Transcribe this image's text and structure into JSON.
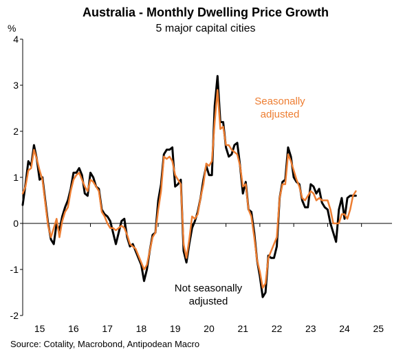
{
  "chart_data": {
    "type": "line",
    "title": "Australia - Monthly Dwelling Price Growth",
    "subtitle": "5 major capital cities",
    "ylabel": "%",
    "xlabel": "",
    "ylim": [
      -2,
      4
    ],
    "xlim": [
      2015.0,
      2025.9
    ],
    "yticks": [
      -2,
      -1,
      0,
      1,
      2,
      3,
      4
    ],
    "yticklabels": [
      "-2",
      "-1",
      "0",
      "1",
      "2",
      "3",
      "4"
    ],
    "xticks": [
      2015,
      2016,
      2017,
      2018,
      2019,
      2020,
      2021,
      2022,
      2023,
      2024,
      2025
    ],
    "xticklabels": [
      "15",
      "16",
      "17",
      "18",
      "19",
      "20",
      "21",
      "22",
      "23",
      "24",
      "25"
    ],
    "source": "Source: Cotality, Macrobond, Antipodean Macro",
    "grid": false,
    "legend": "none",
    "annotations": {
      "seasonally_adjusted": [
        "Seasonally",
        "adjusted"
      ],
      "not_seasonally_adjusted": [
        "Not seasonally",
        "adjusted"
      ]
    },
    "series": [
      {
        "name": "Not seasonally adjusted",
        "color": "#000000",
        "start": 2015.0,
        "step": 0.0833333,
        "values": [
          0.4,
          0.85,
          1.35,
          1.25,
          1.7,
          1.4,
          0.95,
          1.0,
          0.5,
          0.0,
          -0.35,
          -0.45,
          0.0,
          -0.15,
          0.15,
          0.35,
          0.5,
          0.75,
          1.1,
          1.1,
          1.2,
          1.05,
          0.65,
          0.6,
          1.1,
          1.0,
          0.8,
          0.75,
          0.3,
          0.2,
          0.15,
          0.05,
          -0.2,
          -0.45,
          -0.2,
          0.05,
          0.1,
          -0.3,
          -0.5,
          -0.45,
          -0.6,
          -0.75,
          -0.9,
          -1.25,
          -1.0,
          -0.6,
          -0.25,
          -0.2,
          0.5,
          0.85,
          1.5,
          1.6,
          1.6,
          1.65,
          0.8,
          0.85,
          0.95,
          -0.6,
          -0.85,
          -0.45,
          -0.1,
          0.05,
          0.25,
          0.55,
          0.95,
          1.25,
          1.05,
          1.05,
          2.55,
          3.2,
          2.2,
          2.2,
          1.65,
          1.45,
          1.5,
          1.7,
          1.75,
          1.25,
          0.65,
          0.9,
          0.3,
          0.25,
          -0.2,
          -0.8,
          -1.15,
          -1.6,
          -1.5,
          -0.7,
          -0.75,
          -0.75,
          -0.5,
          0.55,
          0.9,
          0.95,
          1.65,
          1.45,
          1.0,
          0.9,
          0.85,
          0.5,
          0.35,
          0.35,
          0.85,
          0.8,
          0.65,
          0.75,
          0.45,
          0.35,
          0.3,
          0.0,
          -0.2,
          -0.4,
          0.3,
          0.55,
          0.1,
          0.55,
          0.6,
          0.6,
          0.6
        ]
      },
      {
        "name": "Seasonally adjusted",
        "color": "#ED7D31",
        "start": 2015.0,
        "step": 0.0833333,
        "values": [
          0.65,
          0.8,
          1.15,
          1.2,
          1.6,
          1.4,
          1.15,
          0.95,
          0.45,
          -0.05,
          -0.3,
          -0.1,
          0.1,
          -0.3,
          0.05,
          0.25,
          0.35,
          0.7,
          0.95,
          1.05,
          1.1,
          0.95,
          0.8,
          0.7,
          0.95,
          0.9,
          0.8,
          0.7,
          0.25,
          0.15,
          0.0,
          -0.1,
          -0.1,
          -0.15,
          -0.1,
          -0.05,
          -0.1,
          -0.25,
          -0.45,
          -0.5,
          -0.55,
          -0.7,
          -0.85,
          -1.0,
          -0.9,
          -0.6,
          -0.3,
          -0.2,
          0.3,
          0.7,
          1.45,
          1.4,
          1.45,
          1.35,
          1.05,
          0.95,
          0.85,
          -0.45,
          -0.75,
          -0.35,
          0.15,
          0.1,
          0.2,
          0.55,
          0.85,
          1.3,
          1.25,
          1.35,
          2.2,
          2.9,
          2.05,
          2.1,
          1.7,
          1.7,
          1.6,
          1.55,
          1.5,
          1.25,
          0.8,
          0.85,
          0.3,
          0.15,
          -0.3,
          -0.8,
          -1.05,
          -1.4,
          -1.3,
          -0.75,
          -0.6,
          -0.45,
          -0.3,
          0.55,
          0.85,
          0.85,
          1.5,
          1.35,
          1.15,
          0.95,
          0.8,
          0.55,
          0.5,
          0.6,
          0.7,
          0.65,
          0.5,
          0.55,
          0.5,
          0.5,
          0.5,
          0.3,
          0.0,
          0.0,
          0.0,
          0.2,
          0.2,
          0.1,
          0.3,
          0.6,
          0.7
        ]
      }
    ]
  }
}
